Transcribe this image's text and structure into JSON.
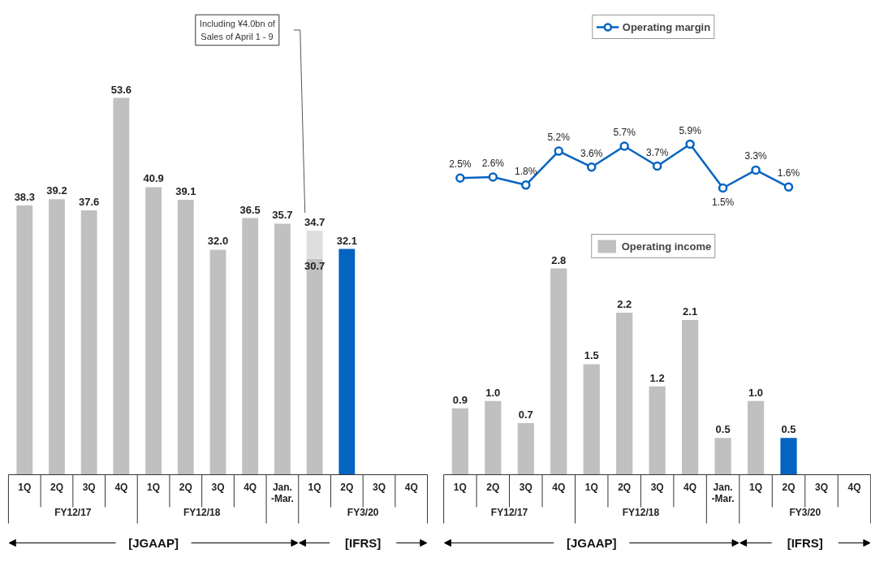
{
  "chart_data": [
    {
      "type": "bar",
      "stacked": true,
      "categories": [
        "1Q",
        "2Q",
        "3Q",
        "4Q",
        "1Q",
        "2Q",
        "3Q",
        "4Q",
        "Jan.-Mar.",
        "1Q",
        "2Q",
        "3Q",
        "4Q"
      ],
      "series": [
        {
          "colors": [
            "#c0c0c0",
            "#c0c0c0",
            "#c0c0c0",
            "#c0c0c0",
            "#c0c0c0",
            "#c0c0c0",
            "#c0c0c0",
            "#c0c0c0",
            "#c0c0c0",
            "#c0c0c0",
            "#0563c1",
            "#c0c0c0",
            "#c0c0c0"
          ],
          "values": [
            38.3,
            39.2,
            37.6,
            53.6,
            40.9,
            39.1,
            32.0,
            36.5,
            35.7,
            30.7,
            32.1,
            null,
            null
          ],
          "value_labels": [
            "38.3",
            "39.2",
            "37.6",
            "53.6",
            "40.9",
            "39.1",
            "32.0",
            "36.5",
            "35.7",
            "30.7",
            "32.1",
            null,
            null
          ]
        },
        {
          "color": "#dedede",
          "values": [
            null,
            null,
            null,
            null,
            null,
            null,
            null,
            null,
            null,
            4.0,
            null,
            null,
            null
          ]
        }
      ],
      "totals": [
        null,
        null,
        null,
        null,
        null,
        null,
        null,
        null,
        null,
        "34.7",
        null,
        null,
        null
      ],
      "annotations": [
        "Including ¥4.0bn of Sales of April 1 - 9",
        "FY12/17",
        "FY12/18",
        "FY3/20",
        "[JGAAP]",
        "[IFRS]"
      ]
    },
    {
      "type": "line",
      "legend": "top",
      "marker": "circle",
      "tick_labels": false,
      "categories": [
        "1Q",
        "2Q",
        "3Q",
        "4Q",
        "1Q",
        "2Q",
        "3Q",
        "4Q",
        "Jan.-Mar.",
        "1Q",
        "2Q",
        "3Q",
        "4Q"
      ],
      "series": [
        {
          "name": "Operating margin",
          "color": "#0563c1",
          "values": [
            2.5,
            2.6,
            1.8,
            5.2,
            3.6,
            5.7,
            3.7,
            5.9,
            1.5,
            3.3,
            1.6,
            null,
            null
          ],
          "value_labels": [
            "2.5%",
            "2.6%",
            "1.8%",
            "5.2%",
            "3.6%",
            "5.7%",
            "3.7%",
            "5.9%",
            "1.5%",
            "3.3%",
            "1.6%",
            null,
            null
          ]
        }
      ]
    },
    {
      "type": "bar",
      "legend": "top",
      "categories": [
        "1Q",
        "2Q",
        "3Q",
        "4Q",
        "1Q",
        "2Q",
        "3Q",
        "4Q",
        "Jan.-Mar.",
        "1Q",
        "2Q",
        "3Q",
        "4Q"
      ],
      "series": [
        {
          "name": "Operating income",
          "colors": [
            "#c0c0c0",
            "#c0c0c0",
            "#c0c0c0",
            "#c0c0c0",
            "#c0c0c0",
            "#c0c0c0",
            "#c0c0c0",
            "#c0c0c0",
            "#c0c0c0",
            "#c0c0c0",
            "#0563c1",
            "#c0c0c0",
            "#c0c0c0"
          ],
          "values": [
            0.9,
            1.0,
            0.7,
            2.8,
            1.5,
            2.2,
            1.2,
            2.1,
            0.5,
            1.0,
            0.5,
            null,
            null
          ],
          "value_labels": [
            "0.9",
            "1.0",
            "0.7",
            "2.8",
            "1.5",
            "2.2",
            "1.2",
            "2.1",
            "0.5",
            "1.0",
            "0.5",
            null,
            null
          ]
        }
      ],
      "annotations": [
        "FY12/17",
        "FY12/18",
        "FY3/20",
        "[JGAAP]",
        "[IFRS]"
      ]
    }
  ]
}
